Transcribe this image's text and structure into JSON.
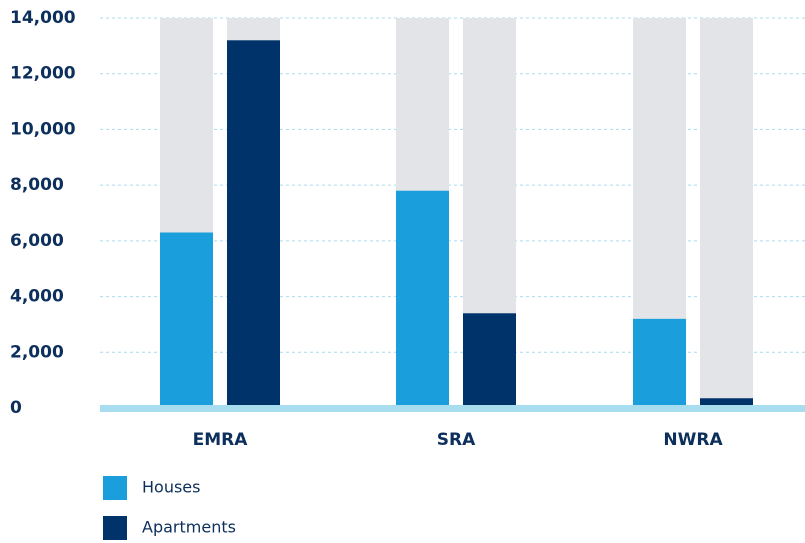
{
  "chart_data": {
    "type": "bar",
    "categories": [
      "EMRA",
      "SRA",
      "NWRA"
    ],
    "series": [
      {
        "name": "Houses",
        "color": "#1a9fdc",
        "values": [
          6300,
          7800,
          3200
        ]
      },
      {
        "name": "Apartments",
        "color": "#00336a",
        "values": [
          13200,
          3400,
          350
        ]
      }
    ],
    "ylim": [
      0,
      14000
    ],
    "yticks": [
      0,
      {
        "value": 2000,
        "label": "2,000"
      },
      {
        "value": 4000,
        "label": "4,000"
      },
      {
        "value": 6000,
        "label": "6,000"
      },
      {
        "value": 8000,
        "label": "8,000"
      },
      {
        "value": 10000,
        "label": "10,000"
      },
      {
        "value": 12000,
        "label": "12,000"
      },
      {
        "value": 14000,
        "label": "14,000"
      }
    ],
    "grid": true,
    "legend": "bottom-left"
  }
}
